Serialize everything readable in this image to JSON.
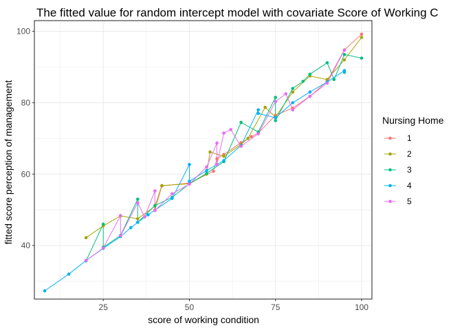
{
  "chart_data": {
    "type": "line",
    "title": "The fitted value for random intercept model with covariate Score of Working C",
    "xlabel": "score of working condition",
    "ylabel": "fitted score perception of management",
    "xlim": [
      5,
      103
    ],
    "ylim": [
      25,
      103
    ],
    "xticks": [
      25,
      50,
      75,
      100
    ],
    "yticks": [
      40,
      60,
      80,
      100
    ],
    "grid": true,
    "legend": {
      "title": "Nursing Home",
      "position": "right"
    },
    "series": [
      {
        "name": "1",
        "color": "#F8766D",
        "points": [
          [
            40,
            50
          ],
          [
            42,
            56.7
          ],
          [
            50,
            57.5
          ],
          [
            57,
            60.8
          ],
          [
            58,
            64.3
          ],
          [
            60,
            65.5
          ],
          [
            65,
            68.8
          ],
          [
            68,
            70.5
          ],
          [
            70,
            71.5
          ],
          [
            75,
            76.5
          ],
          [
            80,
            78.5
          ],
          [
            85,
            81.8
          ],
          [
            90,
            86
          ],
          [
            95,
            94.8
          ],
          [
            100,
            99.2
          ]
        ]
      },
      {
        "name": "2",
        "color": "#A3A500",
        "points": [
          [
            20,
            42.2
          ],
          [
            25,
            45.5
          ],
          [
            30,
            48.3
          ],
          [
            35,
            47.5
          ],
          [
            40,
            51
          ],
          [
            42,
            56.8
          ],
          [
            50,
            57.3
          ],
          [
            55,
            60
          ],
          [
            56,
            66.2
          ],
          [
            60,
            65
          ],
          [
            65,
            68.3
          ],
          [
            67,
            70
          ],
          [
            72,
            78.7
          ],
          [
            75,
            76
          ],
          [
            80,
            83
          ],
          [
            85,
            87.5
          ],
          [
            90,
            86.5
          ],
          [
            95,
            92
          ],
          [
            100,
            98.3
          ]
        ]
      },
      {
        "name": "3",
        "color": "#00BF7D",
        "points": [
          [
            20,
            35.7
          ],
          [
            25,
            46
          ],
          [
            25,
            39.5
          ],
          [
            30,
            42.8
          ],
          [
            35,
            53
          ],
          [
            35,
            46.5
          ],
          [
            40,
            51.2
          ],
          [
            45,
            53.5
          ],
          [
            50,
            57.3
          ],
          [
            55,
            60.2
          ],
          [
            60,
            63.5
          ],
          [
            65,
            74.5
          ],
          [
            70,
            71.8
          ],
          [
            75,
            81.5
          ],
          [
            75,
            75
          ],
          [
            80,
            84
          ],
          [
            83,
            86
          ],
          [
            85,
            88
          ],
          [
            90,
            91.2
          ],
          [
            92,
            86.5
          ],
          [
            95,
            93.5
          ],
          [
            100,
            92.5
          ]
        ]
      },
      {
        "name": "4",
        "color": "#00B0F6",
        "points": [
          [
            8,
            27.3
          ],
          [
            15,
            32
          ],
          [
            20,
            35.8
          ],
          [
            25,
            39.2
          ],
          [
            30,
            42.5
          ],
          [
            33,
            45
          ],
          [
            35,
            46.5
          ],
          [
            38,
            48.6
          ],
          [
            45,
            53.2
          ],
          [
            50,
            62.7
          ],
          [
            50,
            58
          ],
          [
            55,
            61
          ],
          [
            60,
            63.8
          ],
          [
            65,
            68
          ],
          [
            70,
            78
          ],
          [
            70,
            77
          ],
          [
            75,
            75.8
          ],
          [
            80,
            80
          ],
          [
            85,
            83
          ],
          [
            90,
            85.8
          ],
          [
            95,
            89
          ],
          [
            95,
            88.5
          ]
        ]
      },
      {
        "name": "5",
        "color": "#E76BF3",
        "points": [
          [
            20,
            35.8
          ],
          [
            25,
            39.3
          ],
          [
            30,
            48.4
          ],
          [
            30,
            42.7
          ],
          [
            35,
            52
          ],
          [
            37,
            48
          ],
          [
            40,
            55.3
          ],
          [
            40,
            49.8
          ],
          [
            45,
            54.5
          ],
          [
            50,
            57.2
          ],
          [
            55,
            62
          ],
          [
            58,
            68.7
          ],
          [
            58,
            62.7
          ],
          [
            60,
            71.5
          ],
          [
            62,
            72.5
          ],
          [
            65,
            67.8
          ],
          [
            70,
            71.3
          ],
          [
            75,
            80.3
          ],
          [
            78,
            82.5
          ],
          [
            80,
            78
          ],
          [
            85,
            81.8
          ],
          [
            90,
            85.5
          ],
          [
            95,
            94.7
          ]
        ]
      }
    ]
  }
}
